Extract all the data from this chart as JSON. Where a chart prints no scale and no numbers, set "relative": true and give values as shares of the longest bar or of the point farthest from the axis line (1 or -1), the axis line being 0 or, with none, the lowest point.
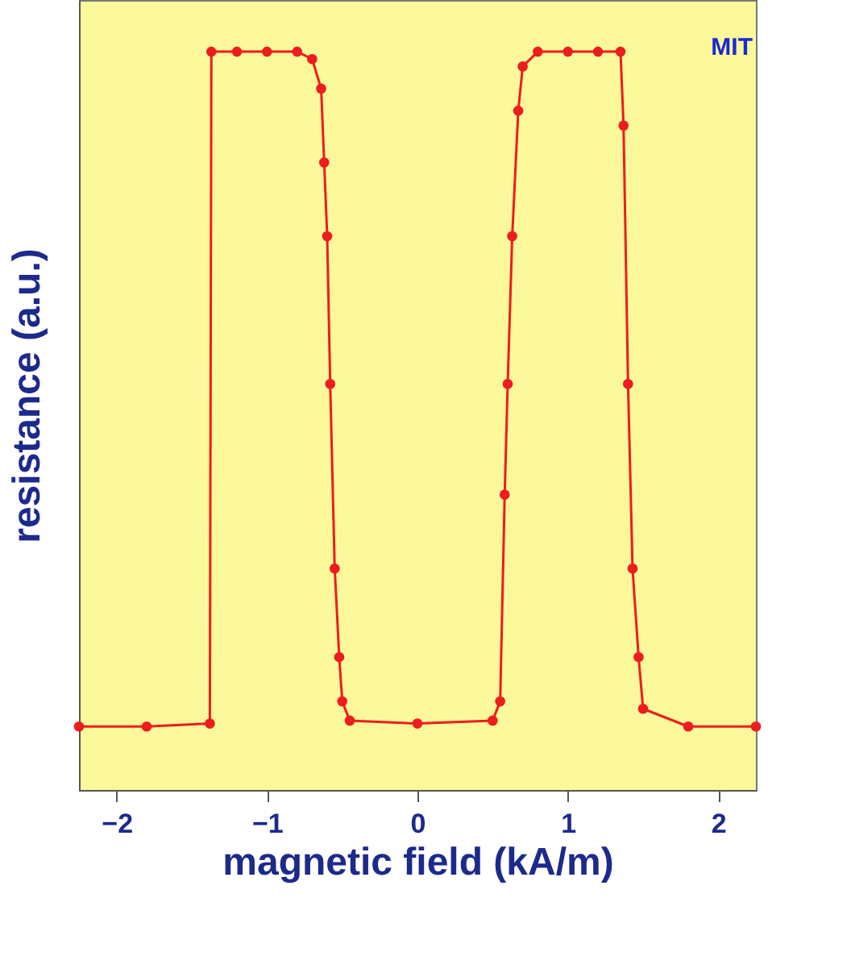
{
  "chart_data": {
    "type": "line",
    "xlabel": "magnetic field (kA/m)",
    "ylabel": "resistance (a.u.)",
    "relative": true,
    "marker": "circle",
    "line_style": "solid",
    "xlim": [
      -2.25,
      2.25
    ],
    "xticks": [
      -2,
      -1,
      0,
      1,
      2
    ],
    "grid": false,
    "legend": false,
    "annotations": [
      "MIT"
    ],
    "series": [
      {
        "color": "#ee1c1c",
        "x": [
          -2.25,
          -1.8,
          -1.38,
          -1.37,
          -1.2,
          -1.0,
          -0.8,
          -0.7,
          -0.64,
          -0.62,
          -0.6,
          -0.58,
          -0.55,
          -0.52,
          -0.5,
          -0.45,
          0.0,
          0.5,
          0.55,
          0.58,
          0.6,
          0.63,
          0.67,
          0.7,
          0.8,
          1.0,
          1.2,
          1.35,
          1.37,
          1.4,
          1.43,
          1.47,
          1.5,
          1.8,
          2.25
        ],
        "values": [
          0.086,
          0.086,
          0.09,
          1,
          1,
          1,
          1,
          0.99,
          0.95,
          0.85,
          0.75,
          0.55,
          0.3,
          0.18,
          0.12,
          0.094,
          0.09,
          0.094,
          0.12,
          0.4,
          0.55,
          0.75,
          0.92,
          0.98,
          1,
          1,
          1,
          1,
          0.9,
          0.55,
          0.3,
          0.18,
          0.11,
          0.086,
          0.086
        ]
      }
    ]
  }
}
